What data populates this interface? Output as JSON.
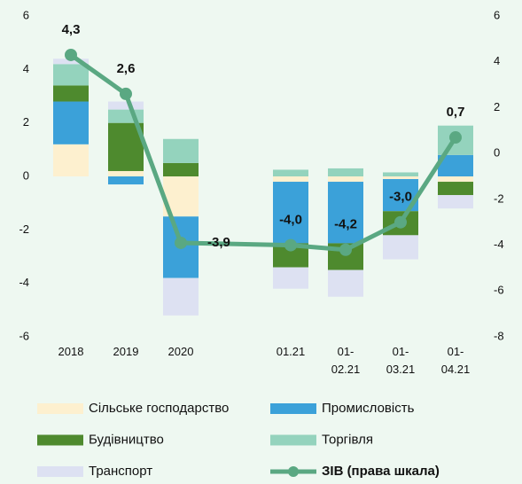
{
  "chart_data": {
    "type": "bar",
    "categories": [
      "2018",
      "2019",
      "2020",
      null,
      "01.21",
      "01-\n02.21",
      "01-\n03.21",
      "01-\n04.21"
    ],
    "ylim": [
      -6,
      6
    ],
    "yticks": [
      -6,
      -4,
      -2,
      0,
      2,
      4,
      6
    ],
    "y2lim": [
      -8,
      6
    ],
    "y2ticks": [
      -8,
      -6,
      -4,
      -2,
      0,
      2,
      4,
      6
    ],
    "series": [
      {
        "name": "Сільське господарство",
        "color": "#fdf0cf",
        "values": [
          1.2,
          0.2,
          -1.5,
          null,
          -0.2,
          -0.2,
          -0.1,
          -0.2
        ]
      },
      {
        "name": "Промисловість",
        "color": "#3ba1d9",
        "values": [
          1.6,
          -0.3,
          -2.3,
          null,
          -2.3,
          -2.3,
          -1.2,
          0.8
        ]
      },
      {
        "name": "Будівництво",
        "color": "#4e8a2e",
        "values": [
          0.6,
          1.8,
          0.5,
          null,
          -0.9,
          -1.0,
          -0.9,
          -0.5
        ]
      },
      {
        "name": "Торгівля",
        "color": "#94d3bd",
        "values": [
          0.8,
          0.5,
          0.9,
          null,
          0.25,
          0.3,
          0.15,
          1.1
        ]
      },
      {
        "name": "Транспорт",
        "color": "#dde1f2",
        "values": [
          0.2,
          0.3,
          -1.4,
          null,
          -0.8,
          -1.0,
          -0.9,
          -0.5
        ]
      },
      {
        "name": "ЗІВ (права шкала)",
        "color": "#5aa882",
        "type": "line",
        "axis": "y2",
        "values": [
          4.3,
          2.6,
          -3.9,
          null,
          -4.0,
          -4.2,
          -3.0,
          0.7
        ],
        "value_labels": [
          "4,3",
          "2,6",
          "-3,9",
          null,
          "-4,0",
          "-4,2",
          "-3,0",
          "0,7"
        ]
      }
    ]
  }
}
